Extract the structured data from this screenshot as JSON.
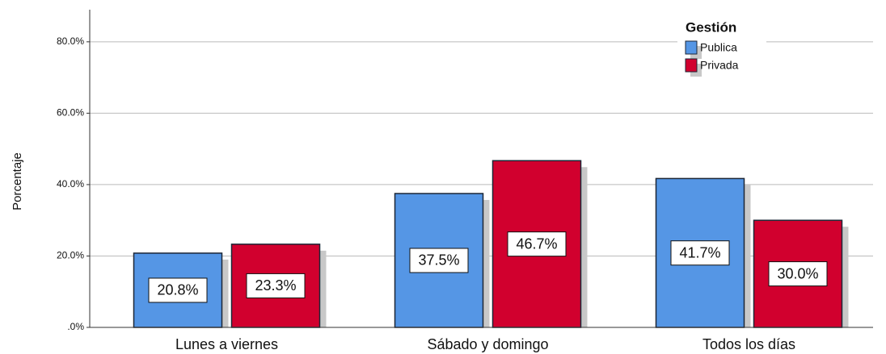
{
  "chart_data": {
    "type": "bar",
    "categories": [
      "Lunes a viernes",
      "Sábado y domingo",
      "Todos los días"
    ],
    "series": [
      {
        "name": "Publica",
        "color": "#5596e5",
        "values": [
          20.8,
          37.5,
          41.7
        ],
        "value_labels": [
          "20.8%",
          "37.5%",
          "41.7%"
        ]
      },
      {
        "name": "Privada",
        "color": "#d1002e",
        "values": [
          23.3,
          46.7,
          30.0
        ],
        "value_labels": [
          "23.3%",
          "46.7%",
          "30.0%"
        ]
      }
    ],
    "y_label": "Porcentaje",
    "legend_title": "Gestión",
    "legend": "top-right",
    "ylim": [
      0,
      89
    ],
    "yticks": [
      {
        "value": 0,
        "label": ".0%"
      },
      {
        "value": 20,
        "label": "20.0%"
      },
      {
        "value": 40,
        "label": "40.0%"
      },
      {
        "value": 60,
        "label": "60.0%"
      },
      {
        "value": 80,
        "label": "80.0%"
      }
    ],
    "grid": true
  }
}
